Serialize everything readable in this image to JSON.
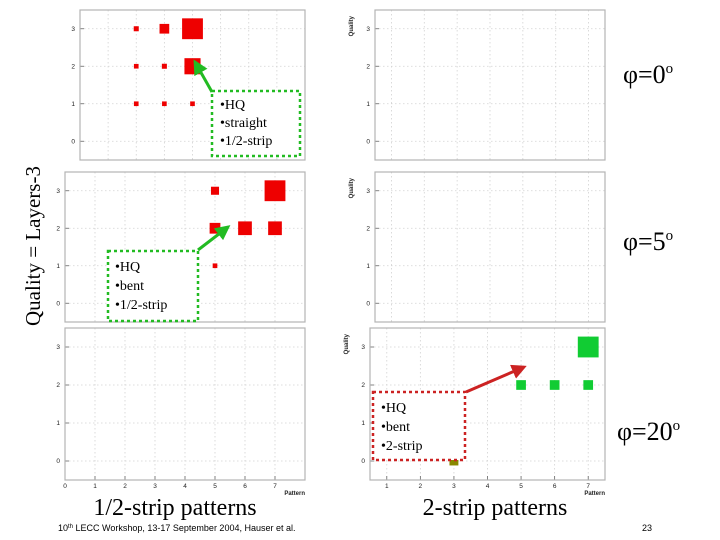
{
  "y_axis_label": "Quality = Layers-3",
  "bottom_labels": {
    "left": "1/2-strip patterns",
    "right": "2-strip patterns"
  },
  "footer": {
    "workshop_prefix": "10",
    "workshop_sup": "th",
    "workshop_rest": " LECC Workshop, 13-17 September 2004, Hauser et al.",
    "page_number": "23"
  },
  "rows": [
    {
      "phi_base": "φ=0",
      "phi_sup": "o",
      "callout": {
        "items": [
          "HQ",
          "straight",
          "1/2-strip"
        ],
        "color": "#22bb22"
      }
    },
    {
      "phi_base": "φ=5",
      "phi_sup": "o",
      "callout": {
        "items": [
          "HQ",
          "bent",
          "1/2-strip"
        ],
        "color": "#22bb22"
      }
    },
    {
      "phi_base": "φ=20",
      "phi_sup": "o",
      "callout": {
        "items": [
          "HQ",
          "bent",
          "2-strip"
        ],
        "color": "#cc2222"
      }
    }
  ],
  "chart_data": [
    {
      "id": "phi0-half-strip",
      "type": "scatter",
      "marker": "box",
      "color": "#ee0000",
      "xlabel": "",
      "ylabel": "",
      "xlim": [
        0,
        8
      ],
      "ylim": [
        -0.5,
        3.5
      ],
      "x_ticks": [],
      "y_ticks": [
        "0",
        "1",
        "2",
        "3"
      ],
      "points": [
        {
          "x": 2,
          "y": 1,
          "w": 0.3
        },
        {
          "x": 3,
          "y": 1,
          "w": 0.3
        },
        {
          "x": 4,
          "y": 1,
          "w": 0.3
        },
        {
          "x": 2,
          "y": 2,
          "w": 0.3
        },
        {
          "x": 3,
          "y": 2,
          "w": 0.35
        },
        {
          "x": 4,
          "y": 2,
          "w": 3.6
        },
        {
          "x": 2,
          "y": 3,
          "w": 0.35
        },
        {
          "x": 3,
          "y": 3,
          "w": 1.3
        },
        {
          "x": 4,
          "y": 3,
          "w": 6
        }
      ]
    },
    {
      "id": "phi0-two-strip",
      "type": "scatter",
      "marker": "box",
      "color": "#ee0000",
      "xlabel": "",
      "ylabel": "Quality",
      "xlim": [
        0.5,
        7.5
      ],
      "ylim": [
        -0.5,
        3.5
      ],
      "x_ticks": [],
      "y_ticks": [
        "0",
        "1",
        "2",
        "3"
      ],
      "points": []
    },
    {
      "id": "phi5-half-strip",
      "type": "scatter",
      "marker": "box",
      "color": "#ee0000",
      "xlabel": "",
      "ylabel": "",
      "xlim": [
        0,
        8
      ],
      "ylim": [
        -0.5,
        3.5
      ],
      "x_ticks": [],
      "y_ticks": [
        "0",
        "1",
        "2",
        "3"
      ],
      "points": [
        {
          "x": 5,
          "y": 3,
          "w": 0.9
        },
        {
          "x": 7,
          "y": 3,
          "w": 6
        },
        {
          "x": 5,
          "y": 2,
          "w": 1.6
        },
        {
          "x": 6,
          "y": 2,
          "w": 2.6
        },
        {
          "x": 7,
          "y": 2,
          "w": 2.6
        },
        {
          "x": 5,
          "y": 1,
          "w": 0.3
        }
      ]
    },
    {
      "id": "phi5-two-strip",
      "type": "scatter",
      "marker": "box",
      "color": "#ee0000",
      "xlabel": "",
      "ylabel": "Quality",
      "xlim": [
        0.5,
        7.5
      ],
      "ylim": [
        -0.5,
        3.5
      ],
      "x_ticks": [],
      "y_ticks": [
        "0",
        "1",
        "2",
        "3"
      ],
      "points": []
    },
    {
      "id": "phi20-half-strip",
      "type": "scatter",
      "marker": "box",
      "color": "#ee0000",
      "xlabel": "Pattern",
      "ylabel": "",
      "xlim": [
        0,
        8
      ],
      "ylim": [
        -0.5,
        3.5
      ],
      "x_ticks": [
        "0",
        "1",
        "2",
        "3",
        "4",
        "5",
        "6",
        "7"
      ],
      "y_ticks": [
        "0",
        "1",
        "2",
        "3"
      ],
      "points": []
    },
    {
      "id": "phi20-two-strip",
      "type": "scatter",
      "marker": "box",
      "color": "#11cc33",
      "xlabel": "Pattern",
      "ylabel": "Quality",
      "xlim": [
        0.5,
        7.5
      ],
      "ylim": [
        -0.5,
        3.5
      ],
      "x_ticks": [
        "1",
        "2",
        "3",
        "4",
        "5",
        "6",
        "7"
      ],
      "y_ticks": [
        "0",
        "1",
        "2",
        "3"
      ],
      "points": [
        {
          "x": 7,
          "y": 3,
          "w": 6
        },
        {
          "x": 5,
          "y": 2,
          "w": 1.3
        },
        {
          "x": 6,
          "y": 2,
          "w": 1.3
        },
        {
          "x": 7,
          "y": 2,
          "w": 1.3
        },
        {
          "x": 3,
          "y": 0,
          "w": 1.1,
          "color": "#888800"
        }
      ]
    }
  ]
}
